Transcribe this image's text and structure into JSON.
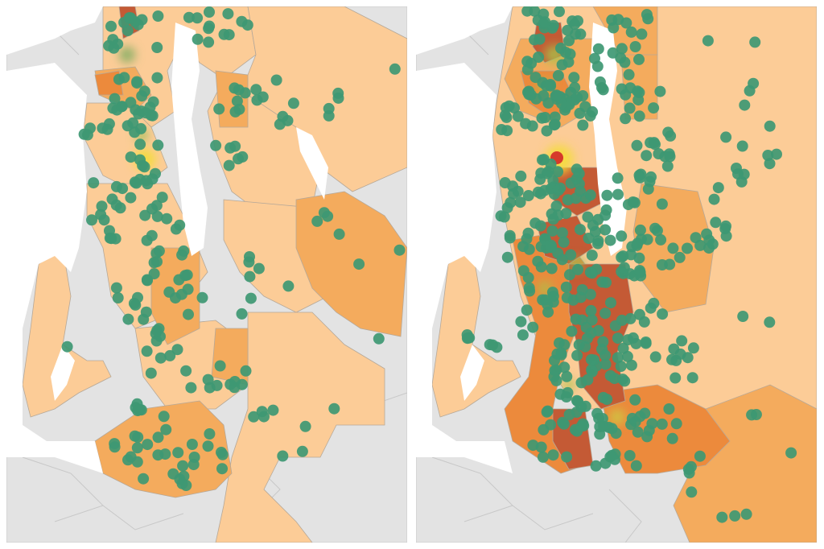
{
  "colors": {
    "water": "#ffffff",
    "land_outside": "#e3e3e3",
    "density_low": "#fccc97",
    "density_mid": "#f4ab5d",
    "density_high": "#ec8a3c",
    "density_very_high": "#c45a35",
    "point_fill": "#3e9873",
    "heat_warm": "#f4dc3a",
    "heat_hot": "#d4302a"
  },
  "panels": [
    {
      "id": "left-map",
      "point_count_estimate": 200
    },
    {
      "id": "right-map",
      "point_count_estimate": 420
    }
  ]
}
